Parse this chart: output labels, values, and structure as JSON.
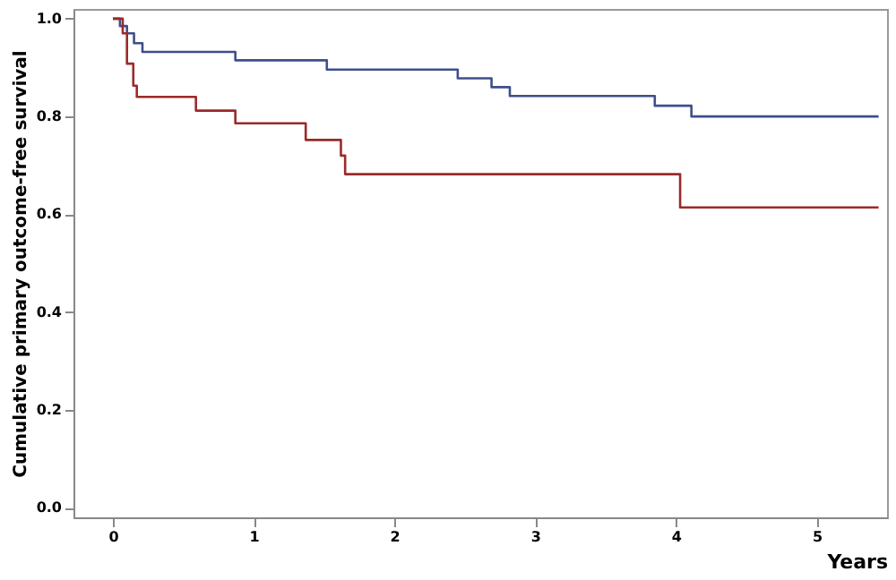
{
  "chart_data": {
    "type": "step",
    "xlabel": "Years",
    "ylabel": "Cumulative primary outcome-free survival",
    "xlim": [
      -0.28,
      5.5
    ],
    "ylim": [
      -0.02,
      1.02
    ],
    "xticks": [
      0,
      1,
      2,
      3,
      4,
      5
    ],
    "yticks": [
      {
        "value": 0,
        "label": "0.0"
      },
      {
        "value": 0.2,
        "label": "0.2"
      },
      {
        "value": 0.4,
        "label": "0.4"
      },
      {
        "value": 0.6,
        "label": "0.6"
      },
      {
        "value": 0.8,
        "label": "0.8"
      },
      {
        "value": 1,
        "label": "1.0"
      }
    ],
    "grid": false,
    "marker": "none",
    "line_style": "solid",
    "series": [
      {
        "color": "#3f4e8c",
        "x": [
          0,
          0.05,
          0.1,
          0.15,
          0.21,
          0.87,
          1.52,
          2.45,
          2.69,
          2.82,
          3.85,
          4.11,
          5.44
        ],
        "values": [
          1.0,
          0.985,
          0.97,
          0.95,
          0.932,
          0.915,
          0.896,
          0.878,
          0.86,
          0.842,
          0.822,
          0.8,
          0.8
        ]
      },
      {
        "color": "#9b2a2a",
        "x": [
          0,
          0.07,
          0.1,
          0.145,
          0.17,
          0.59,
          0.87,
          1.37,
          1.62,
          1.65,
          4.03,
          5.44
        ],
        "values": [
          1.0,
          0.97,
          0.908,
          0.863,
          0.84,
          0.812,
          0.786,
          0.752,
          0.72,
          0.682,
          0.614,
          0.614
        ]
      }
    ]
  }
}
